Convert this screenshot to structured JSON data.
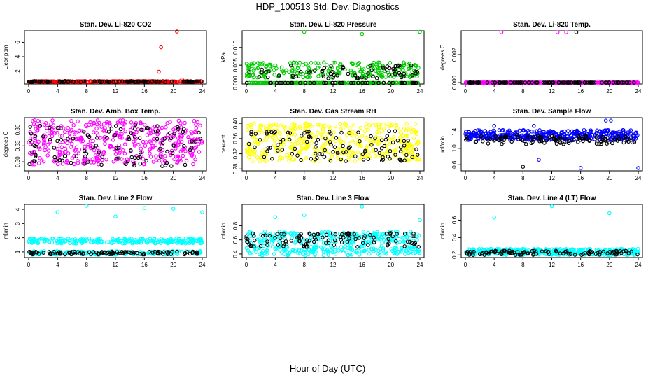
{
  "figure": {
    "title": "HDP_100513  Std. Dev. Diagnostics",
    "xlabel": "Hour of Day (UTC)"
  },
  "chart_data": [
    {
      "type": "scatter",
      "title": "Stan. Dev. Li-820 CO2",
      "ylabel": "Licor ppm",
      "xlim": [
        0,
        24
      ],
      "ylim": [
        0.2,
        7.6
      ],
      "xticks": [
        "0",
        "4",
        "8",
        "12",
        "16",
        "20",
        "24"
      ],
      "yticks": [
        {
          "v": 2,
          "label": "2"
        },
        {
          "v": 4,
          "label": "4"
        },
        {
          "v": 6,
          "label": "6"
        }
      ],
      "series": [
        {
          "name": "primary",
          "color": "#ff0000",
          "band": [
            0.45,
            0.6
          ],
          "outliers": [
            {
              "x": 18.0,
              "y": 1.9
            },
            {
              "x": 18.3,
              "y": 5.3
            },
            {
              "x": 20.5,
              "y": 7.5
            },
            {
              "x": 21.2,
              "y": 0.8
            }
          ]
        },
        {
          "name": "secondary",
          "color": "#000000",
          "band": [
            0.45,
            0.6
          ],
          "outliers": []
        }
      ]
    },
    {
      "type": "scatter",
      "title": "Stan. Dev. Li-820 Pressure",
      "ylabel": "kPa",
      "xlim": [
        0,
        24
      ],
      "ylim": [
        -0.0003,
        0.0147
      ],
      "xticks": [
        "0",
        "4",
        "8",
        "12",
        "16",
        "20",
        "24"
      ],
      "yticks": [
        {
          "v": 0,
          "label": "0.000"
        },
        {
          "v": 0.005,
          "label": "0.005"
        },
        {
          "v": 0.01,
          "label": "0.010"
        }
      ],
      "series": [
        {
          "name": "primary",
          "color": "#00cc00",
          "band": [
            0.0015,
            0.0058
          ],
          "zero_level": 0,
          "outliers": [
            {
              "x": 8.0,
              "y": 0.0144
            },
            {
              "x": 16.0,
              "y": 0.0138
            },
            {
              "x": 24.0,
              "y": 0.0144
            }
          ]
        },
        {
          "name": "secondary",
          "color": "#000000",
          "band": [
            0.0012,
            0.005
          ],
          "zero_level": 0,
          "outliers": []
        }
      ]
    },
    {
      "type": "scatter",
      "title": "Stan. Dev. Li-820 Temp.",
      "ylabel": "degrees C",
      "xlim": [
        0,
        24
      ],
      "ylim": [
        -0.0001,
        0.0037
      ],
      "xticks": [
        "0",
        "4",
        "8",
        "12",
        "16",
        "20",
        "24"
      ],
      "yticks": [
        {
          "v": 0,
          "label": "0.000"
        },
        {
          "v": 0.002,
          "label": "0.002"
        }
      ],
      "series": [
        {
          "name": "primary",
          "color": "#ff00ff",
          "band": [
            0,
            0
          ],
          "zero_level": 0,
          "outliers": [
            {
              "x": 5.0,
              "y": 0.0036
            },
            {
              "x": 12.8,
              "y": 0.0036
            },
            {
              "x": 14.0,
              "y": 0.0036
            }
          ]
        },
        {
          "name": "secondary",
          "color": "#000000",
          "band": [
            0,
            0
          ],
          "zero_level": 0,
          "outliers": [
            {
              "x": 15.4,
              "y": 0.0036
            }
          ]
        }
      ]
    },
    {
      "type": "scatter",
      "title": "Stan. Dev. Amb. Box Temp.",
      "ylabel": "degrees C",
      "xlim": [
        0,
        24
      ],
      "ylim": [
        0.283,
        0.383
      ],
      "xticks": [
        "0",
        "4",
        "8",
        "12",
        "16",
        "20",
        "24"
      ],
      "yticks": [
        {
          "v": 0.3,
          "label": "0.30"
        },
        {
          "v": 0.33,
          "label": "0.33"
        },
        {
          "v": 0.36,
          "label": "0.36"
        }
      ],
      "series": [
        {
          "name": "primary",
          "color": "#ff00ff",
          "band": [
            0.295,
            0.378
          ],
          "outliers": []
        },
        {
          "name": "secondary",
          "color": "#000000",
          "band": [
            0.29,
            0.37
          ],
          "outliers": []
        }
      ]
    },
    {
      "type": "scatter",
      "title": "Stan. Dev. Gas Stream RH",
      "ylabel": "percent",
      "xlim": [
        0,
        24
      ],
      "ylim": [
        0.275,
        0.415
      ],
      "xticks": [
        "0",
        "4",
        "8",
        "12",
        "16",
        "20",
        "24"
      ],
      "yticks": [
        {
          "v": 0.28,
          "label": "0.28"
        },
        {
          "v": 0.32,
          "label": "0.32"
        },
        {
          "v": 0.36,
          "label": "0.36"
        },
        {
          "v": 0.4,
          "label": "0.40"
        }
      ],
      "series": [
        {
          "name": "primary",
          "color": "#ffff00",
          "band": [
            0.3,
            0.4
          ],
          "outliers": []
        },
        {
          "name": "secondary",
          "color": "#000000",
          "band": [
            0.3,
            0.38
          ],
          "outliers": []
        }
      ]
    },
    {
      "type": "scatter",
      "title": "Stan. Dev. Sample Flow",
      "ylabel": "ml/min",
      "xlim": [
        0,
        24
      ],
      "ylim": [
        0.45,
        1.75
      ],
      "xticks": [
        "0",
        "4",
        "8",
        "12",
        "16",
        "20",
        "24"
      ],
      "yticks": [
        {
          "v": 0.6,
          "label": "0.6"
        },
        {
          "v": 1.0,
          "label": "1.0"
        },
        {
          "v": 1.4,
          "label": "1.4"
        }
      ],
      "series": [
        {
          "name": "primary",
          "color": "#0000ff",
          "band": [
            1.2,
            1.45
          ],
          "outliers": [
            {
              "x": 4.0,
              "y": 1.55
            },
            {
              "x": 10.2,
              "y": 0.72
            },
            {
              "x": 16.0,
              "y": 0.52
            },
            {
              "x": 24.0,
              "y": 0.52
            },
            {
              "x": 19.5,
              "y": 1.68
            },
            {
              "x": 20.2,
              "y": 1.68
            },
            {
              "x": 9.5,
              "y": 1.55
            }
          ]
        },
        {
          "name": "secondary",
          "color": "#000000",
          "band": [
            1.1,
            1.32
          ],
          "outliers": [
            {
              "x": 8.0,
              "y": 0.55
            }
          ]
        }
      ]
    },
    {
      "type": "scatter",
      "title": "Stan. Dev. Line 2 Flow",
      "ylabel": "ml/min",
      "xlim": [
        0,
        24
      ],
      "ylim": [
        0.6,
        4.35
      ],
      "xticks": [
        "0",
        "4",
        "8",
        "12",
        "16",
        "20",
        "24"
      ],
      "yticks": [
        {
          "v": 1,
          "label": "1"
        },
        {
          "v": 2,
          "label": "2"
        },
        {
          "v": 3,
          "label": "3"
        },
        {
          "v": 4,
          "label": "4"
        }
      ],
      "series": [
        {
          "name": "primary",
          "color": "#00ffff",
          "band": [
            1.6,
            1.95
          ],
          "band2": [
            0.8,
            1.05
          ],
          "outliers": [
            {
              "x": 4.0,
              "y": 3.8
            },
            {
              "x": 8.0,
              "y": 4.25
            },
            {
              "x": 12.0,
              "y": 3.5
            },
            {
              "x": 16.0,
              "y": 4.1
            },
            {
              "x": 20.0,
              "y": 4.05
            },
            {
              "x": 24.0,
              "y": 3.8
            }
          ]
        },
        {
          "name": "secondary",
          "color": "#000000",
          "band": [
            0.82,
            1.02
          ],
          "outliers": []
        }
      ]
    },
    {
      "type": "scatter",
      "title": "Stan. Dev. Line 3 Flow",
      "ylabel": "ml/min",
      "xlim": [
        0,
        24
      ],
      "ylim": [
        0.35,
        1.1
      ],
      "xticks": [
        "0",
        "4",
        "8",
        "12",
        "16",
        "20",
        "24"
      ],
      "yticks": [
        {
          "v": 0.4,
          "label": "0.4"
        },
        {
          "v": 0.6,
          "label": "0.6"
        },
        {
          "v": 0.8,
          "label": "0.8"
        }
      ],
      "series": [
        {
          "name": "primary",
          "color": "#00ffff",
          "band": [
            0.55,
            0.72
          ],
          "band2": [
            0.38,
            0.52
          ],
          "outliers": [
            {
              "x": 4.0,
              "y": 0.92
            },
            {
              "x": 8.0,
              "y": 0.95
            },
            {
              "x": 16.0,
              "y": 1.07
            },
            {
              "x": 24.0,
              "y": 0.88
            }
          ]
        },
        {
          "name": "secondary",
          "color": "#000000",
          "band": [
            0.5,
            0.7
          ],
          "outliers": []
        }
      ]
    },
    {
      "type": "scatter",
      "title": "Stan. Dev. Line 4 (LT) Flow",
      "ylabel": "ml/min",
      "xlim": [
        0,
        24
      ],
      "ylim": [
        0.17,
        0.78
      ],
      "xticks": [
        "0",
        "4",
        "8",
        "12",
        "16",
        "20",
        "24"
      ],
      "yticks": [
        {
          "v": 0.2,
          "label": "0.2"
        },
        {
          "v": 0.4,
          "label": "0.4"
        },
        {
          "v": 0.6,
          "label": "0.6"
        }
      ],
      "series": [
        {
          "name": "primary",
          "color": "#00ffff",
          "band": [
            0.2,
            0.27
          ],
          "outliers": [
            {
              "x": 4.0,
              "y": 0.63
            },
            {
              "x": 12.0,
              "y": 0.76
            },
            {
              "x": 20.0,
              "y": 0.68
            }
          ]
        },
        {
          "name": "secondary",
          "color": "#000000",
          "band": [
            0.2,
            0.25
          ],
          "outliers": []
        }
      ]
    }
  ]
}
